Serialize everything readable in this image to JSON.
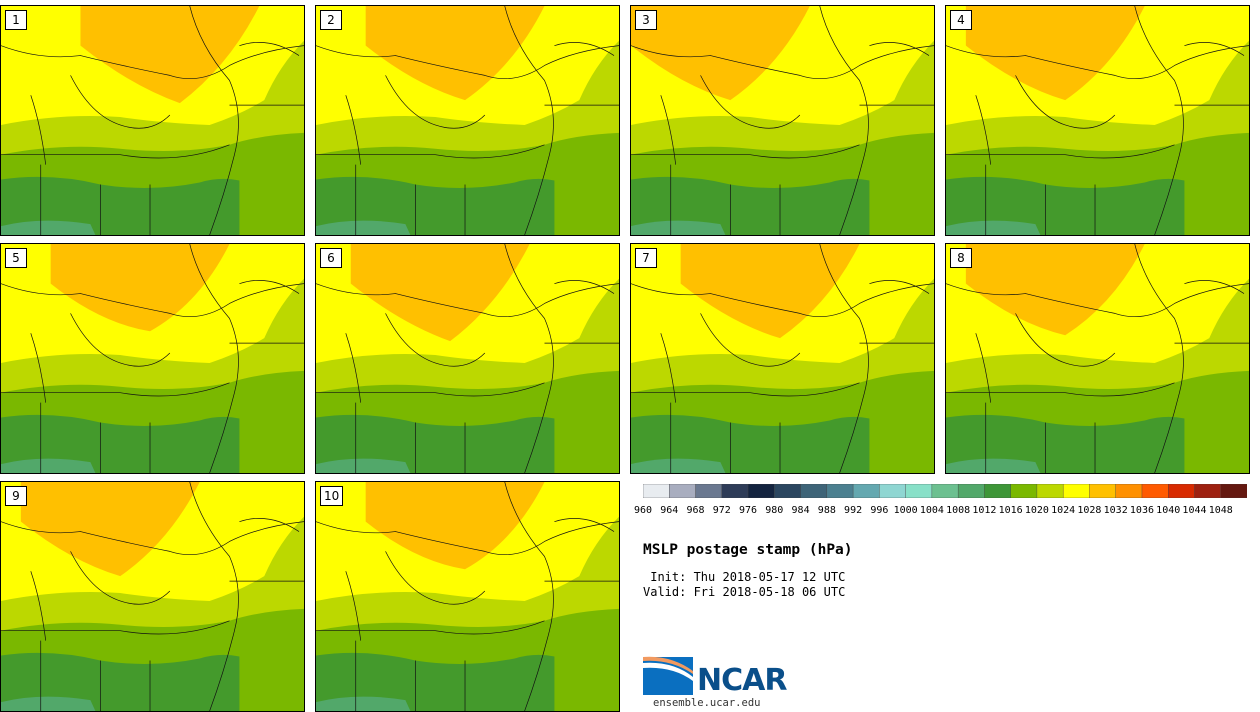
{
  "panels": [
    {
      "label": "1"
    },
    {
      "label": "2"
    },
    {
      "label": "3"
    },
    {
      "label": "4"
    },
    {
      "label": "5"
    },
    {
      "label": "6"
    },
    {
      "label": "7"
    },
    {
      "label": "8"
    },
    {
      "label": "9"
    },
    {
      "label": "10"
    }
  ],
  "colorbar": {
    "ticks": [
      "960",
      "964",
      "968",
      "972",
      "976",
      "980",
      "984",
      "988",
      "992",
      "996",
      "1000",
      "1004",
      "1008",
      "1012",
      "1016",
      "1020",
      "1024",
      "1028",
      "1032",
      "1036",
      "1040",
      "1044",
      "1048"
    ],
    "colors": [
      "#e8ecf0",
      "#a8adbf",
      "#6a7890",
      "#2e3c58",
      "#142440",
      "#2b4660",
      "#3e6478",
      "#4c8090",
      "#64a8b0",
      "#8fd6d2",
      "#88e0c8",
      "#6cc090",
      "#52a86a",
      "#3e9638",
      "#7ab800",
      "#bcd800",
      "#ffff00",
      "#ffc000",
      "#ff9000",
      "#ff5a00",
      "#d82a00",
      "#9e2010",
      "#641810"
    ]
  },
  "map_colors": {
    "orange": "#ffc000",
    "dark_orange": "#ff9000",
    "yellow": "#ffff00",
    "lime": "#bcd800",
    "yellow_green": "#90c000",
    "green": "#7ab800",
    "dark_green": "#449a2c",
    "teal_green": "#52a86a"
  },
  "title": "MSLP postage stamp (hPa)",
  "init": " Init: Thu 2018-05-17 12 UTC",
  "valid": "Valid: Fri 2018-05-18 06 UTC",
  "logo_text": "NCAR",
  "website": "ensemble.ucar.edu"
}
